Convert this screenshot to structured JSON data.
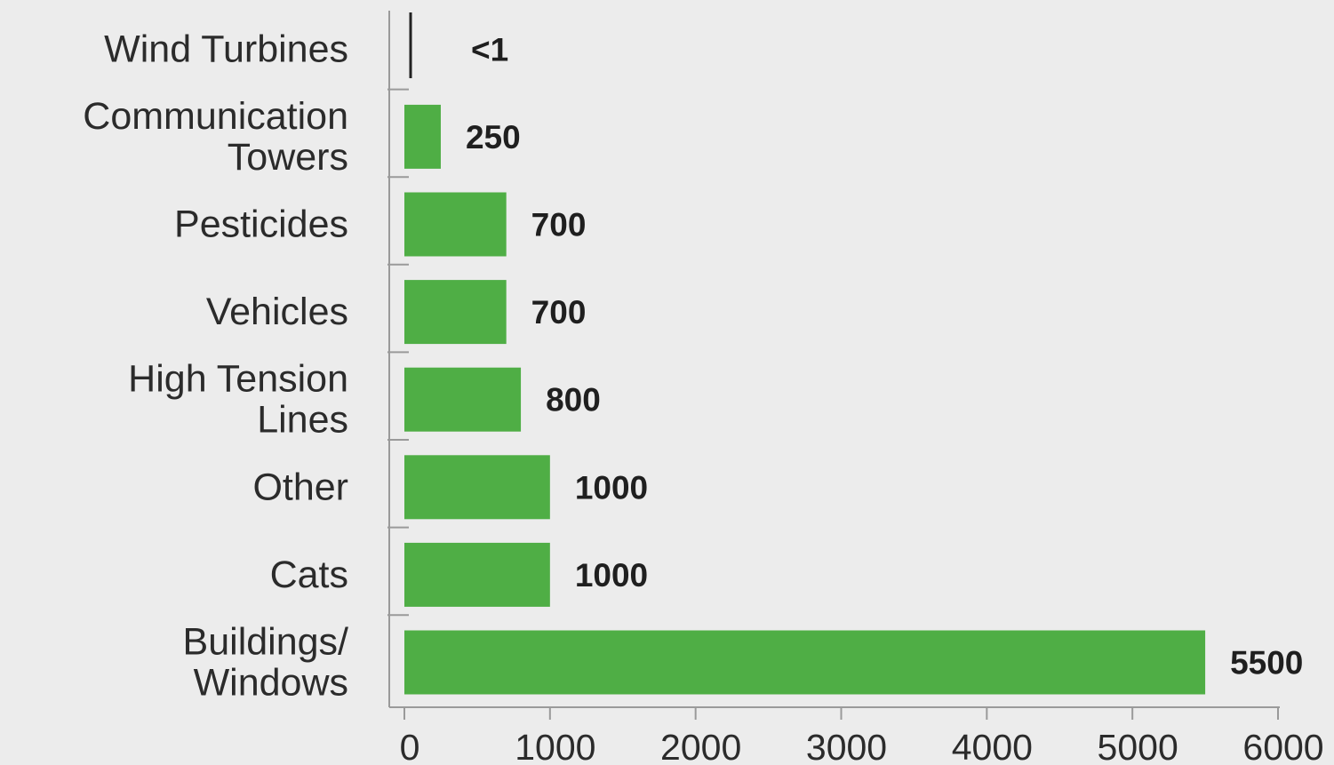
{
  "chart_data": {
    "type": "bar",
    "orientation": "horizontal",
    "categories": [
      [
        "Wind Turbines"
      ],
      [
        "Communication",
        "Towers"
      ],
      [
        "Pesticides"
      ],
      [
        "Vehicles"
      ],
      [
        "High Tension",
        "Lines"
      ],
      [
        "Other"
      ],
      [
        "Cats"
      ],
      [
        "Buildings/",
        "Windows"
      ]
    ],
    "values": [
      0.5,
      250,
      700,
      700,
      800,
      1000,
      1000,
      5500
    ],
    "value_labels": [
      "<1",
      "250",
      "700",
      "700",
      "800",
      "1000",
      "1000",
      "5500"
    ],
    "xlim": [
      0,
      6000
    ],
    "x_ticks": [
      "0",
      "1000",
      "2000",
      "3000",
      "4000",
      "5000",
      "6000"
    ],
    "grid": false,
    "legend": "none",
    "colors": {
      "bar": "#4fae45",
      "tiny_bar": "#222222",
      "axis": "#9a9a9a",
      "background": "#ececec"
    }
  }
}
